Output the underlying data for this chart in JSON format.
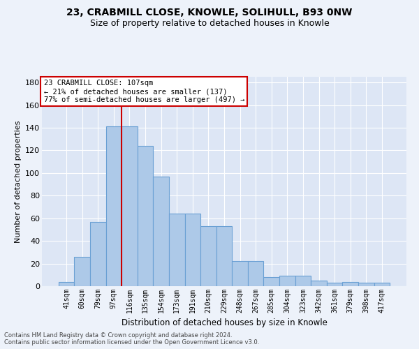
{
  "title1": "23, CRABMILL CLOSE, KNOWLE, SOLIHULL, B93 0NW",
  "title2": "Size of property relative to detached houses in Knowle",
  "xlabel": "Distribution of detached houses by size in Knowle",
  "ylabel": "Number of detached properties",
  "categories": [
    "41sqm",
    "60sqm",
    "79sqm",
    "97sqm",
    "116sqm",
    "135sqm",
    "154sqm",
    "173sqm",
    "191sqm",
    "210sqm",
    "229sqm",
    "248sqm",
    "267sqm",
    "285sqm",
    "304sqm",
    "323sqm",
    "342sqm",
    "361sqm",
    "379sqm",
    "398sqm",
    "417sqm"
  ],
  "values": [
    4,
    26,
    57,
    141,
    141,
    124,
    97,
    64,
    64,
    53,
    53,
    22,
    22,
    8,
    9,
    9,
    5,
    3,
    4,
    3,
    3
  ],
  "bar_color": "#adc9e8",
  "bar_edge_color": "#6aa0d4",
  "vline_x": 3.5,
  "vline_color": "#cc0000",
  "annotation_text": "23 CRABMILL CLOSE: 107sqm\n← 21% of detached houses are smaller (137)\n77% of semi-detached houses are larger (497) →",
  "annotation_box_color": "#ffffff",
  "annotation_box_edge": "#cc0000",
  "ylim": [
    0,
    185
  ],
  "yticks": [
    0,
    20,
    40,
    60,
    80,
    100,
    120,
    140,
    160,
    180
  ],
  "footnote": "Contains HM Land Registry data © Crown copyright and database right 2024.\nContains public sector information licensed under the Open Government Licence v3.0.",
  "bg_color": "#edf2fa",
  "plot_bg_color": "#dde6f5",
  "grid_color": "#ffffff",
  "title1_fontsize": 10,
  "title2_fontsize": 9
}
